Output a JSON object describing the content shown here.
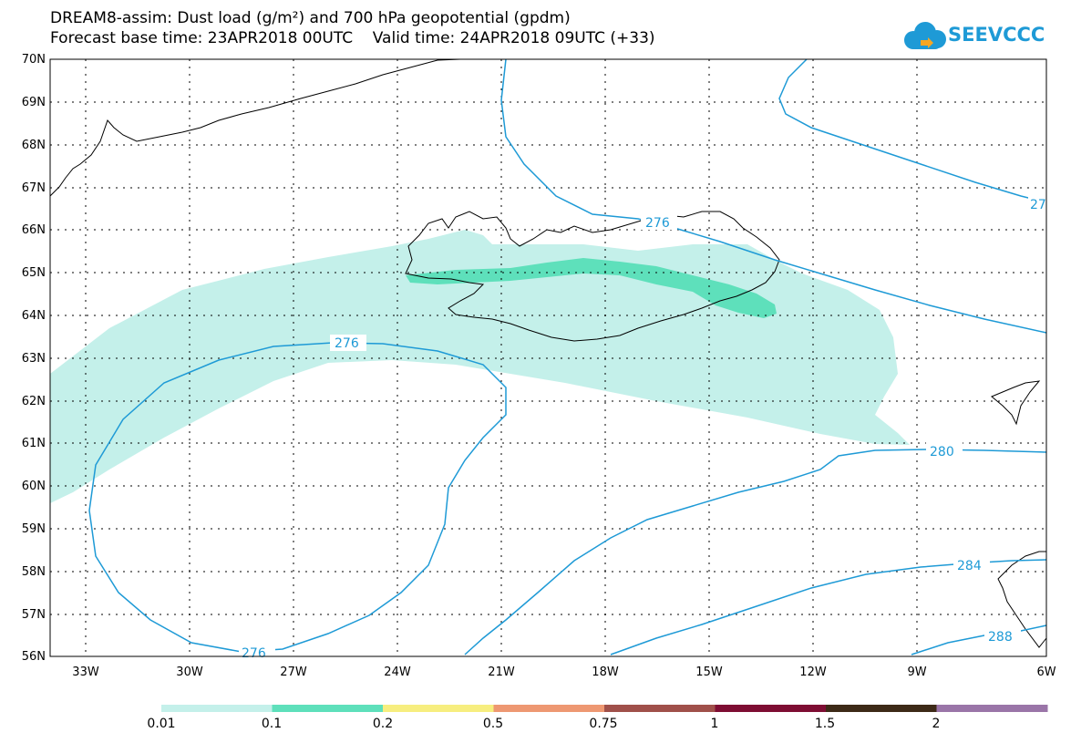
{
  "title": {
    "line1": "DREAM8-assim: Dust load (g/m²) and 700 hPa geopotential (gpdm)",
    "line2": "Forecast base time: 23APR2018 00UTC    Valid time: 24APR2018 09UTC (+33)"
  },
  "logo": {
    "text": "SEEVCCC",
    "icon": "cloud-icon",
    "color": "#1e9ad6"
  },
  "axes": {
    "lat_labels": [
      "70N",
      "69N",
      "68N",
      "67N",
      "66N",
      "65N",
      "64N",
      "63N",
      "62N",
      "61N",
      "60N",
      "59N",
      "58N",
      "57N",
      "56N"
    ],
    "lon_labels": [
      "33W",
      "30W",
      "27W",
      "24W",
      "21W",
      "18W",
      "15W",
      "12W",
      "9W",
      "6W"
    ]
  },
  "contours": {
    "color": "#1e9ad6",
    "labels": [
      "276",
      "276",
      "276",
      "27",
      "280",
      "284",
      "288"
    ]
  },
  "colorbar": {
    "colors": [
      "#c4f0ea",
      "#5ee0bb",
      "#f7ee7f",
      "#ee9872",
      "#a0504a",
      "#7e0d33",
      "#3d2a17",
      "#9a75a8"
    ],
    "labels": [
      "0.01",
      "0.1",
      "0.2",
      "0.5",
      "0.75",
      "1",
      "1.5",
      "2"
    ]
  },
  "dust_colors": {
    "low": "#c4f0ea",
    "medium": "#5ee0bb"
  }
}
